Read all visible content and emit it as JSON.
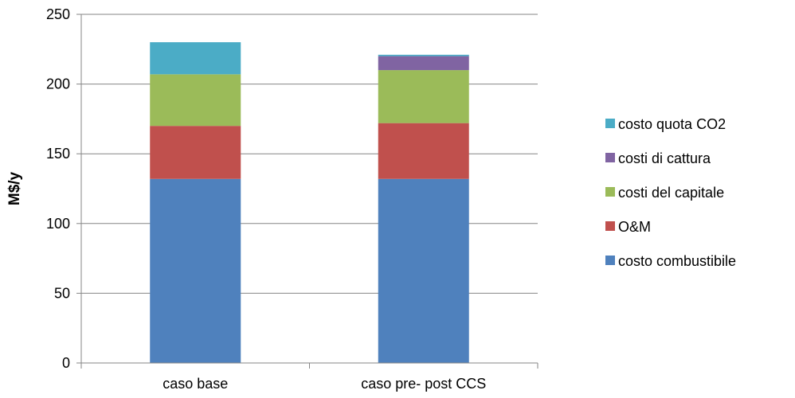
{
  "chart_data": {
    "type": "bar",
    "stacked": true,
    "categories": [
      "caso base",
      "caso pre- post CCS"
    ],
    "series": [
      {
        "name": "costo combustibile",
        "color": "#4F81BD",
        "values": [
          132,
          132
        ]
      },
      {
        "name": "O&M",
        "color": "#C0504D",
        "values": [
          38,
          40
        ]
      },
      {
        "name": "costi del capitale",
        "color": "#9BBB59",
        "values": [
          37,
          38
        ]
      },
      {
        "name": "costi di cattura",
        "color": "#8064A2",
        "values": [
          0,
          10
        ]
      },
      {
        "name": "costo quota CO2",
        "color": "#4BACC6",
        "values": [
          23,
          1
        ]
      }
    ],
    "legend_order": [
      "costo quota CO2",
      "costi di cattura",
      "costi del capitale",
      "O&M",
      "costo combustibile"
    ],
    "ylabel": "M$/y",
    "xlabel": "",
    "ylim": [
      0,
      250
    ],
    "yticks": [
      0,
      50,
      100,
      150,
      200,
      250
    ],
    "grid": true,
    "legend_position": "right"
  }
}
